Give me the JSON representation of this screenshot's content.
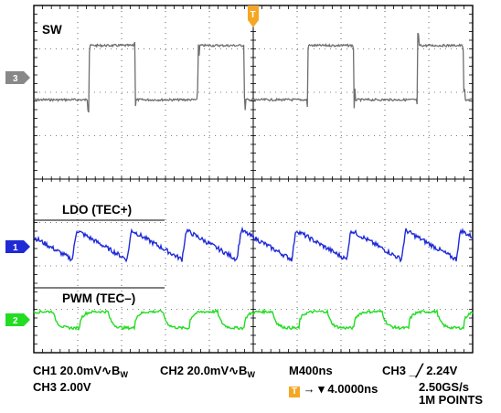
{
  "chart_data": [
    {
      "type": "line",
      "panel": "top",
      "title": "SW",
      "channel_marker": "3",
      "marker_color": "#888888",
      "series": [
        {
          "name": "SW",
          "color": "#6e6e6e",
          "shape": "square",
          "period_ns": 1000,
          "high_duty": 0.42,
          "level_high_div": 1.6,
          "level_low_div": -1.1
        }
      ]
    },
    {
      "type": "line",
      "panel": "bottom",
      "channel_markers": [
        "1",
        "2"
      ],
      "series": [
        {
          "name": "LDO (TEC+)",
          "color": "#1f2ad6",
          "marker": "1",
          "shape": "sawtooth",
          "period_ns": 500
        },
        {
          "name": "PWM (TEC–)",
          "color": "#22dd22",
          "marker": "2",
          "shape": "rounded-square",
          "period_ns": 500
        }
      ]
    }
  ],
  "scope": {
    "trigger_marker": "T",
    "trigger_color": "#f5a623",
    "divisions_x": 10,
    "divisions_y": 8
  },
  "footer": {
    "ch1": "CH1 20.0mV",
    "ch1_bw": "∿B",
    "ch1_bw_sub": "W",
    "ch2": "CH2 20.0mV",
    "ch2_bw": "∿B",
    "ch2_bw_sub": "W",
    "timebase": "M400ns",
    "trigger": "CH3 ₐ╱ 2.24V",
    "trigger_text": "CH3 _╱ 2.24V",
    "ch3": "CH3 2.00V",
    "position_marker": "T",
    "position_arrow": "→ ▾",
    "position": "4.0000ns",
    "sample_rate": "2.50GS/s",
    "record_length": "1M POINTS"
  }
}
